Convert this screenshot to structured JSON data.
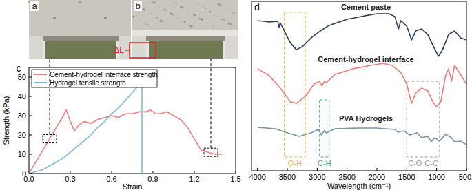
{
  "panel_labels": [
    "a",
    "b",
    "c",
    "d"
  ],
  "photos": {
    "annotation": "ΔL"
  },
  "chart_data": [
    {
      "type": "line",
      "x_label": "Strain",
      "y_label": "Strength (kPa)",
      "xlim": [
        0,
        1.5
      ],
      "ylim": [
        0,
        55
      ],
      "xticks": [
        {
          "value": 0,
          "label": "0.0"
        },
        0.3,
        0.6,
        0.9,
        1.2,
        1.5
      ],
      "yticks": [
        0,
        10,
        20,
        30,
        40,
        50
      ],
      "legend": "upper left",
      "series": [
        {
          "name": "Cement-hydrogel interface strength",
          "color": "#f27f7f",
          "x": [
            0,
            0.05,
            0.1,
            0.15,
            0.2,
            0.25,
            0.27,
            0.3,
            0.33,
            0.36,
            0.4,
            0.45,
            0.5,
            0.55,
            0.6,
            0.65,
            0.7,
            0.75,
            0.8,
            0.85,
            0.88,
            0.92,
            0.95,
            1.0,
            1.05,
            1.1,
            1.15,
            1.2,
            1.25,
            1.3,
            1.35,
            1.4
          ],
          "values": [
            0,
            6,
            12,
            18,
            24,
            30,
            33,
            27,
            22,
            25,
            27,
            26,
            28,
            29,
            30,
            29,
            31,
            31,
            32,
            32,
            33,
            31,
            31,
            32,
            30,
            28,
            24,
            18,
            12,
            11,
            10,
            10
          ]
        },
        {
          "name": "Hydrogel tensile strength",
          "color": "#7fb9de",
          "x": [
            0,
            0.05,
            0.1,
            0.15,
            0.2,
            0.25,
            0.3,
            0.35,
            0.4,
            0.45,
            0.5,
            0.55,
            0.6,
            0.65,
            0.7,
            0.75,
            0.8,
            0.82,
            0.82
          ],
          "values": [
            0,
            1,
            2,
            4,
            6,
            8,
            11,
            14,
            17,
            20,
            24,
            27,
            31,
            34,
            38,
            42,
            46,
            50,
            0
          ]
        }
      ],
      "callouts": [
        {
          "x": 0.15,
          "y": 18
        },
        {
          "x": 1.32,
          "y": 11
        }
      ]
    },
    {
      "type": "line",
      "x_label": "Wavelength (cm⁻¹)",
      "xlim": [
        4100,
        500
      ],
      "ylim": [
        0,
        100
      ],
      "xticks": [
        4000,
        3500,
        3000,
        2500,
        2000,
        1500,
        1000,
        500
      ],
      "tick_labels": "x",
      "series": [
        {
          "name": "Cement paste",
          "color": "#2b3d5b",
          "x": [
            4000,
            3800,
            3660,
            3640,
            3620,
            3550,
            3450,
            3350,
            3250,
            3100,
            2950,
            2800,
            2500,
            2200,
            2000,
            1800,
            1700,
            1640,
            1600,
            1500,
            1420,
            1350,
            1250,
            1150,
            1050,
            970,
            900,
            800,
            700,
            600,
            500
          ],
          "values": [
            88.6,
            87.8,
            88.2,
            84.6,
            87.4,
            82.5,
            75.6,
            71.5,
            73.2,
            78.5,
            82.5,
            85.8,
            89.4,
            91.5,
            92.7,
            92.7,
            91.1,
            83.7,
            88.6,
            85.4,
            77.2,
            82.5,
            83.7,
            80.5,
            73.2,
            67.5,
            71.5,
            80.5,
            82.5,
            78.5,
            77.2
          ]
        },
        {
          "name": "Cement-hydrogel interface",
          "color": "#f07c7c",
          "x": [
            4000,
            3800,
            3600,
            3450,
            3350,
            3200,
            3050,
            2960,
            2920,
            2880,
            2850,
            2700,
            2400,
            2100,
            1900,
            1750,
            1600,
            1500,
            1420,
            1350,
            1250,
            1150,
            1050,
            1000,
            930,
            850,
            800,
            750,
            700,
            600,
            500
          ],
          "values": [
            60.2,
            56.1,
            48.0,
            40.7,
            39.8,
            43.9,
            51.2,
            52.8,
            50.0,
            52.8,
            52.0,
            56.9,
            60.2,
            62.2,
            63.4,
            62.2,
            58.1,
            51.2,
            39.8,
            45.9,
            48.8,
            47.2,
            39.8,
            37.8,
            40.7,
            56.1,
            60.2,
            52.8,
            62.2,
            56.9,
            51.2
          ]
        },
        {
          "name": "PVA Hydrogels",
          "color": "#7896a6",
          "x": [
            4000,
            3700,
            3500,
            3300,
            3100,
            2980,
            2930,
            2880,
            2850,
            2700,
            2300,
            2000,
            1700,
            1650,
            1550,
            1450,
            1330,
            1250,
            1150,
            1090,
            1030,
            950,
            850,
            750,
            700,
            600,
            500
          ],
          "values": [
            25.6,
            24.8,
            22.4,
            20.3,
            22.4,
            24.4,
            21.1,
            23.6,
            22.4,
            24.8,
            25.2,
            25.2,
            24.4,
            22.8,
            23.6,
            21.1,
            22.4,
            19.5,
            20.3,
            17.1,
            19.5,
            17.5,
            21.5,
            19.5,
            17.1,
            17.5,
            15.4
          ]
        }
      ],
      "regions": [
        {
          "labels": [
            "O-H"
          ],
          "xrange": [
            3550,
            3200
          ],
          "color": "#f5b342"
        },
        {
          "labels": [
            "C-H"
          ],
          "xrange": [
            2960,
            2800
          ],
          "color": "#3aaa8a"
        },
        {
          "labels": [
            "C-O",
            "C-C"
          ],
          "xrange": [
            1500,
            950
          ],
          "color": "#9a9a9a"
        }
      ]
    }
  ]
}
